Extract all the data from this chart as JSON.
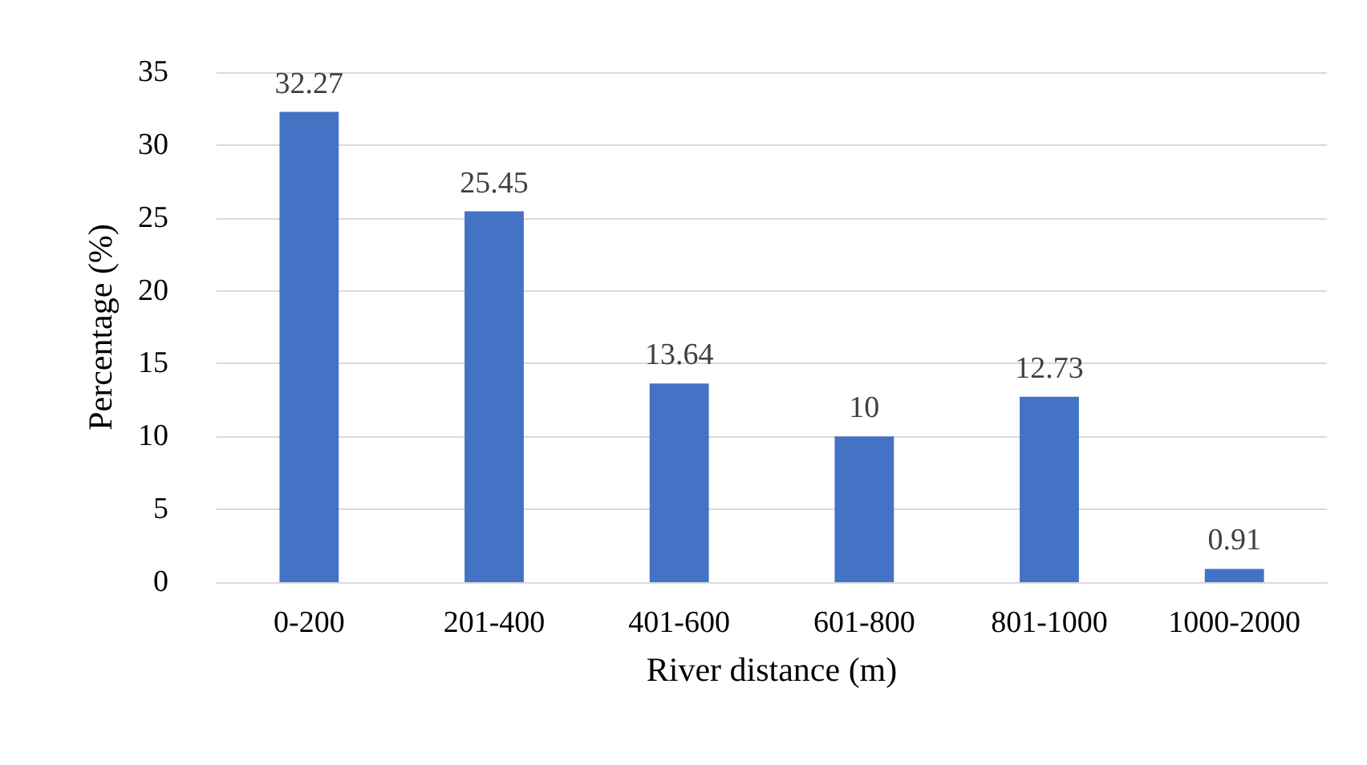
{
  "chart_data": {
    "type": "bar",
    "xlabel": "River distance (m)",
    "ylabel": "Percentage (%)",
    "categories": [
      "0-200",
      "201-400",
      "401-600",
      "601-800",
      "801-1000",
      "1000-2000"
    ],
    "values": [
      32.27,
      25.45,
      13.64,
      10,
      12.73,
      0.91
    ],
    "color": "#4472c4",
    "ylim": [
      0,
      35
    ],
    "yticks": [
      0,
      5,
      10,
      15,
      20,
      25,
      30,
      35
    ],
    "grid": "y",
    "data_labels": true
  }
}
